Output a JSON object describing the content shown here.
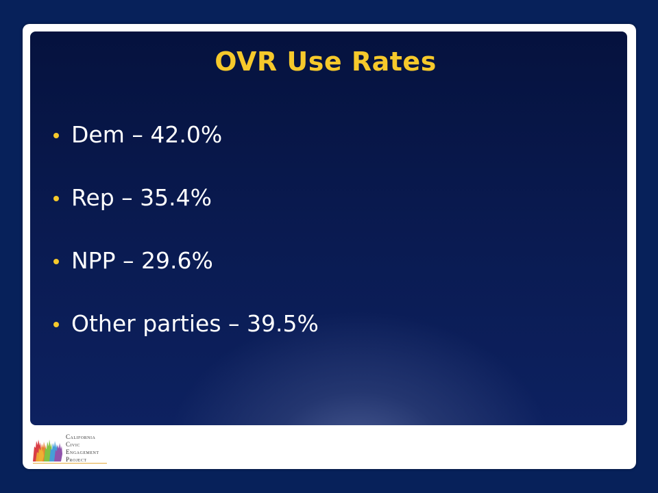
{
  "slide": {
    "title": "OVR Use Rates",
    "bullets": [
      "Dem – 42.0%",
      "Rep – 35.4%",
      "NPP – 29.6%",
      "Other parties – 39.5%"
    ]
  },
  "logo": {
    "lines": [
      "California",
      "Civic",
      "Engagement",
      "Project"
    ]
  },
  "colors": {
    "title": "#f6c92b",
    "bullet": "#f6c92b",
    "text": "#ffffff",
    "background": "#07215a"
  }
}
